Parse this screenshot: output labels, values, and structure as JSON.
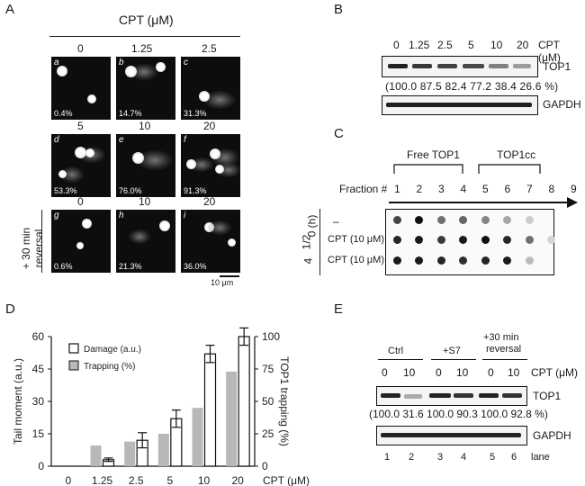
{
  "panels": {
    "a": "A",
    "b": "B",
    "c": "C",
    "d": "D",
    "e": "E"
  },
  "panel_a": {
    "header": "CPT (μM)",
    "row1_conc": [
      "0",
      "1.25",
      "2.5"
    ],
    "row2_conc": [
      "5",
      "10",
      "20"
    ],
    "row3_conc": [
      "0",
      "10",
      "20"
    ],
    "cells": [
      {
        "letter": "a",
        "pct": "0.4%"
      },
      {
        "letter": "b",
        "pct": "14.7%"
      },
      {
        "letter": "c",
        "pct": "31.3%"
      },
      {
        "letter": "d",
        "pct": "53.3%"
      },
      {
        "letter": "e",
        "pct": "76.0%"
      },
      {
        "letter": "f",
        "pct": "91.3%"
      },
      {
        "letter": "g",
        "pct": "0.6%"
      },
      {
        "letter": "h",
        "pct": "21.3%"
      },
      {
        "letter": "i",
        "pct": "36.0%"
      }
    ],
    "reversal_line1": "+ 30 min",
    "reversal_line2": "reversal",
    "scale_bar": "10 μm"
  },
  "panel_b": {
    "conc": [
      "0",
      "1.25",
      "2.5",
      "5",
      "10",
      "20"
    ],
    "cpt_label": "CPT (μM)",
    "top1_label": "TOP1",
    "gapdh_label": "GAPDH",
    "percent_line": "(100.0 87.5 82.4 77.2 38.4 26.6 %)",
    "band_intensity": [
      1.0,
      0.875,
      0.824,
      0.772,
      0.384,
      0.266
    ]
  },
  "panel_c": {
    "free_label": "Free TOP1",
    "cc_label": "TOP1cc",
    "fraction_label": "Fraction #",
    "fractions": [
      "1",
      "2",
      "3",
      "4",
      "5",
      "6",
      "7",
      "8",
      "9"
    ],
    "time_label": "(h)",
    "times": [
      "0",
      "1/2",
      "4"
    ],
    "row_labels": [
      "–",
      "CPT (10 μM)",
      "CPT (10 μM)"
    ],
    "dot_intensity": [
      [
        0.75,
        1.0,
        0.55,
        0.6,
        0.45,
        0.3,
        0.12,
        0.0,
        0.0
      ],
      [
        0.9,
        0.95,
        0.8,
        0.95,
        1.0,
        0.9,
        0.55,
        0.08,
        0.0
      ],
      [
        0.95,
        0.95,
        0.9,
        0.85,
        0.9,
        0.95,
        0.2,
        0.0,
        0.0
      ]
    ]
  },
  "panel_e": {
    "groups": [
      "Ctrl",
      "+S7",
      "+30 min",
      "reversal"
    ],
    "conc": [
      "0",
      "10",
      "0",
      "10",
      "0",
      "10"
    ],
    "cpt_label": "CPT (μM)",
    "top1_label": "TOP1",
    "gapdh_label": "GAPDH",
    "percent_line": "(100.0 31.6 100.0 90.3 100.0 92.8 %)",
    "lanes": [
      "1",
      "2",
      "3",
      "4",
      "5",
      "6"
    ],
    "lane_label": "lane",
    "band_intensity": [
      1.0,
      0.316,
      1.0,
      0.903,
      1.0,
      0.928
    ]
  },
  "chart_data": {
    "type": "bar",
    "categories": [
      "0",
      "1.25",
      "2.5",
      "5",
      "10",
      "20"
    ],
    "xlabel_unit": "CPT (μM)",
    "ylabel": "Tail moment (a.u.)",
    "y2label": "TOP1 trapping (%)",
    "ylim": [
      0,
      60
    ],
    "y2lim": [
      0,
      100
    ],
    "yticks": [
      "0",
      "15",
      "30",
      "45",
      "60"
    ],
    "y2ticks": [
      "0",
      "25",
      "50",
      "75",
      "100"
    ],
    "legend_position": "top-left",
    "series": [
      {
        "name": "Damage (a.u.)",
        "axis": "left",
        "color": "#ffffff",
        "values": [
          0,
          3,
          12,
          22,
          52,
          60
        ],
        "errors": [
          0,
          0.8,
          3.5,
          4,
          4,
          4
        ]
      },
      {
        "name": "Trapping (%)",
        "axis": "right",
        "color": "#b8b8b8",
        "values": [
          0,
          16,
          19,
          25,
          45,
          73
        ],
        "errors": [
          0,
          0,
          0,
          0,
          0,
          0
        ]
      }
    ]
  }
}
